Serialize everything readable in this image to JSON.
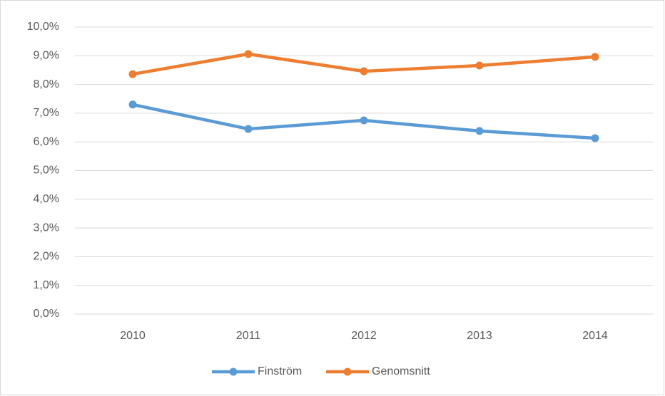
{
  "chart_data": {
    "type": "line",
    "categories": [
      "2010",
      "2011",
      "2012",
      "2013",
      "2014"
    ],
    "series": [
      {
        "name": "Finström",
        "color": "#5b9bd5",
        "values": [
          7.3,
          6.45,
          6.75,
          6.38,
          6.13
        ]
      },
      {
        "name": "Genomsnitt",
        "color": "#ed7d31",
        "values": [
          8.36,
          9.06,
          8.46,
          8.66,
          8.96
        ]
      }
    ],
    "ylim": [
      0,
      10
    ],
    "yticks": [
      {
        "value": 0,
        "label": "0,0%"
      },
      {
        "value": 1,
        "label": "1,0%"
      },
      {
        "value": 2,
        "label": "2,0%"
      },
      {
        "value": 3,
        "label": "3,0%"
      },
      {
        "value": 4,
        "label": "4,0%"
      },
      {
        "value": 5,
        "label": "5,0%"
      },
      {
        "value": 6,
        "label": "6,0%"
      },
      {
        "value": 7,
        "label": "7,0%"
      },
      {
        "value": 8,
        "label": "8,0%"
      },
      {
        "value": 9,
        "label": "9,0%"
      },
      {
        "value": 10,
        "label": "10,0%"
      }
    ],
    "grid": true,
    "legend": "bottom"
  }
}
